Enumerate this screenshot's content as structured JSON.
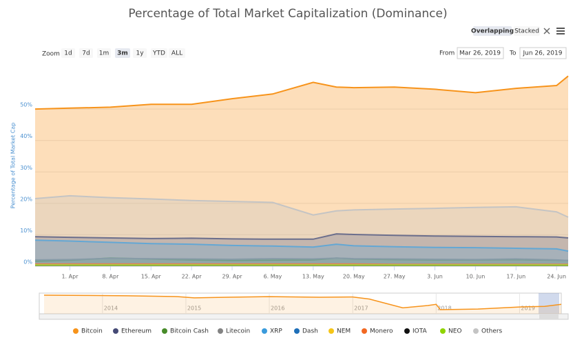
{
  "controls": {
    "modes": [
      "Overlapping",
      "Stacked"
    ],
    "zoom_label": "Zoom",
    "zoom_buttons": [
      "1d",
      "7d",
      "1m",
      "3m",
      "1y",
      "YTD",
      "ALL"
    ],
    "from_label": "From",
    "from_value": "Mar 26, 2019",
    "to_label": "To",
    "to_value": "Jun 26, 2019"
  },
  "chart_data": {
    "type": "area",
    "title": "Percentage of Total Market Capitalization (Dominance)",
    "y_label": "Percentage of Total Market Cap",
    "grid": true,
    "x": [
      "2019-03-26",
      "2019-04-01",
      "2019-04-08",
      "2019-04-15",
      "2019-04-22",
      "2019-04-29",
      "2019-05-06",
      "2019-05-13",
      "2019-05-17",
      "2019-05-20",
      "2019-05-27",
      "2019-06-03",
      "2019-06-10",
      "2019-06-17",
      "2019-06-24",
      "2019-06-26"
    ],
    "xlim": [
      "2019-03-26",
      "2019-06-26"
    ],
    "xticks": [
      {
        "value": "2019-04-01",
        "label": "1. Apr"
      },
      {
        "value": "2019-04-08",
        "label": "8. Apr"
      },
      {
        "value": "2019-04-15",
        "label": "15. Apr"
      },
      {
        "value": "2019-04-22",
        "label": "22. Apr"
      },
      {
        "value": "2019-04-29",
        "label": "29. Apr"
      },
      {
        "value": "2019-05-06",
        "label": "6. May"
      },
      {
        "value": "2019-05-13",
        "label": "13. May"
      },
      {
        "value": "2019-05-20",
        "label": "20. May"
      },
      {
        "value": "2019-05-27",
        "label": "27. May"
      },
      {
        "value": "2019-06-03",
        "label": "3. Jun"
      },
      {
        "value": "2019-06-10",
        "label": "10. Jun"
      },
      {
        "value": "2019-06-17",
        "label": "17. Jun"
      },
      {
        "value": "2019-06-24",
        "label": "24. Jun"
      }
    ],
    "ylim": [
      0,
      61
    ],
    "yticks": [
      {
        "value": 0,
        "label": "0%"
      },
      {
        "value": 10,
        "label": "10%"
      },
      {
        "value": 20,
        "label": "20%"
      },
      {
        "value": 30,
        "label": "30%"
      },
      {
        "value": 40,
        "label": "40%"
      },
      {
        "value": 50,
        "label": "50%"
      }
    ],
    "series": [
      {
        "name": "Bitcoin",
        "color": "#f7931a",
        "values": [
          50.0,
          50.3,
          50.6,
          51.5,
          51.5,
          53.3,
          54.8,
          58.5,
          57.0,
          56.8,
          57.0,
          56.3,
          55.2,
          56.6,
          57.5,
          60.5
        ]
      },
      {
        "name": "Ethereum",
        "color": "#454a75",
        "values": [
          9.4,
          9.2,
          9.0,
          8.8,
          8.9,
          8.7,
          8.6,
          8.6,
          10.3,
          10.1,
          9.8,
          9.6,
          9.5,
          9.4,
          9.3,
          9.0
        ]
      },
      {
        "name": "Bitcoin Cash",
        "color": "#478b2a",
        "values": [
          1.6,
          1.9,
          2.6,
          2.3,
          2.0,
          1.8,
          1.9,
          2.0,
          2.6,
          2.3,
          2.1,
          2.0,
          2.0,
          2.1,
          1.9,
          1.8
        ]
      },
      {
        "name": "Litecoin",
        "color": "#838383",
        "values": [
          2.0,
          2.1,
          2.5,
          2.4,
          2.3,
          2.2,
          2.4,
          2.3,
          2.6,
          2.4,
          2.3,
          2.2,
          2.1,
          2.3,
          2.0,
          1.8
        ]
      },
      {
        "name": "XRP",
        "color": "#3a9bdc",
        "values": [
          8.3,
          8.0,
          7.6,
          7.2,
          7.0,
          6.6,
          6.4,
          6.1,
          7.0,
          6.5,
          6.2,
          6.0,
          5.9,
          5.7,
          5.5,
          4.8
        ]
      },
      {
        "name": "Dash",
        "color": "#1e6fb8",
        "values": [
          0.6,
          0.6,
          0.6,
          0.5,
          0.5,
          0.5,
          0.5,
          0.5,
          0.5,
          0.5,
          0.5,
          0.5,
          0.4,
          0.4,
          0.4,
          0.4
        ]
      },
      {
        "name": "NEM",
        "color": "#f5c518",
        "values": [
          0.3,
          0.3,
          0.3,
          0.3,
          0.3,
          0.3,
          0.3,
          0.3,
          0.3,
          0.3,
          0.3,
          0.3,
          0.3,
          0.3,
          0.3,
          0.3
        ]
      },
      {
        "name": "Monero",
        "color": "#f26822",
        "values": [
          0.7,
          0.7,
          0.7,
          0.7,
          0.7,
          0.7,
          0.7,
          0.7,
          0.7,
          0.7,
          0.6,
          0.6,
          0.6,
          0.6,
          0.6,
          0.6
        ]
      },
      {
        "name": "IOTA",
        "color": "#111111",
        "values": [
          0.3,
          0.3,
          0.3,
          0.3,
          0.3,
          0.3,
          0.3,
          0.3,
          0.3,
          0.3,
          0.3,
          0.3,
          0.3,
          0.3,
          0.3,
          0.3
        ]
      },
      {
        "name": "NEO",
        "color": "#8fd400",
        "values": [
          0.4,
          0.4,
          0.4,
          0.4,
          0.4,
          0.4,
          0.4,
          0.4,
          0.4,
          0.4,
          0.4,
          0.4,
          0.4,
          0.4,
          0.4,
          0.4
        ]
      },
      {
        "name": "Others",
        "color": "#c4c4c4",
        "values": [
          21.5,
          22.4,
          21.8,
          21.4,
          20.9,
          20.6,
          20.3,
          16.3,
          17.6,
          17.9,
          18.2,
          18.4,
          18.7,
          18.9,
          17.3,
          15.6
        ]
      }
    ],
    "navigator": {
      "x": [
        2013.3,
        2013.8,
        2014.3,
        2014.9,
        2015.1,
        2015.5,
        2016.0,
        2016.6,
        2017.0,
        2017.2,
        2017.4,
        2017.6,
        2017.9,
        2018.0,
        2018.05,
        2018.5,
        2019.0,
        2019.3,
        2019.5
      ],
      "values": [
        93,
        92,
        91,
        88,
        84,
        86,
        88,
        86,
        87,
        80,
        65,
        50,
        58,
        62,
        44,
        46,
        53,
        55,
        62
      ],
      "xlim": [
        2013.3,
        2019.5
      ],
      "ylim": [
        30,
        100
      ],
      "xticks": [
        2014,
        2015,
        2016,
        2017,
        2018,
        2019
      ]
    }
  }
}
